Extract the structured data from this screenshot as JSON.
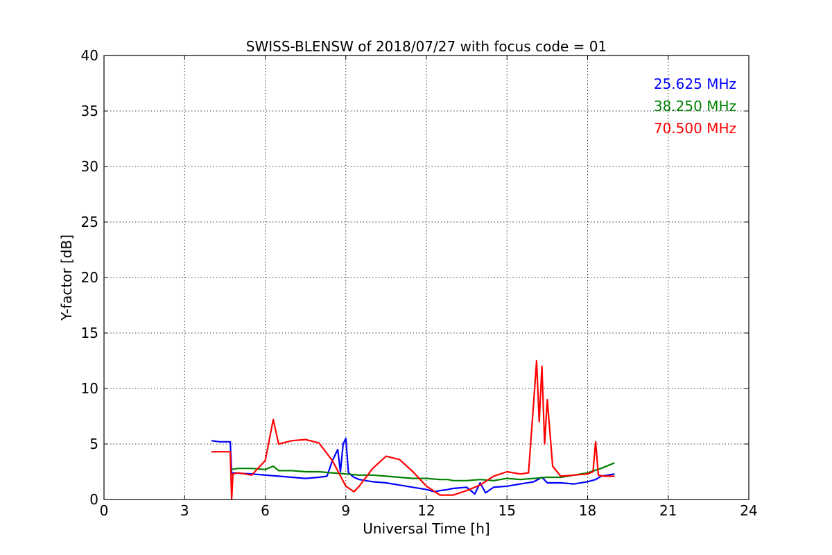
{
  "chart_data": {
    "type": "line",
    "title": "SWISS-BLENSW of 2018/07/27 with focus code = 01",
    "xlabel": "Universal Time [h]",
    "ylabel": "Y-factor [dB]",
    "xlim": [
      0,
      24
    ],
    "ylim": [
      0,
      40
    ],
    "xticks": [
      0,
      3,
      6,
      9,
      12,
      15,
      18,
      21,
      24
    ],
    "yticks": [
      0,
      5,
      10,
      15,
      20,
      25,
      30,
      35,
      40
    ],
    "xtick_labels": [
      "0",
      "3",
      "6",
      "9",
      "12",
      "15",
      "18",
      "21",
      "24"
    ],
    "ytick_labels": [
      "0",
      "5",
      "10",
      "15",
      "20",
      "25",
      "30",
      "35",
      "40"
    ],
    "grid": true,
    "legend_position": "top-right",
    "series": [
      {
        "name": "25.625 MHz",
        "color": "#0000ff",
        "x": [
          4.0,
          4.3,
          4.7,
          4.75,
          4.8,
          5.5,
          6.0,
          6.5,
          7.0,
          7.5,
          8.0,
          8.3,
          8.5,
          8.7,
          8.8,
          8.9,
          9.0,
          9.1,
          9.3,
          9.5,
          10.0,
          10.5,
          11.0,
          11.5,
          12.0,
          12.3,
          12.5,
          12.8,
          13.0,
          13.5,
          13.8,
          14.0,
          14.2,
          14.5,
          15.0,
          15.5,
          16.0,
          16.3,
          16.5,
          17.0,
          17.5,
          18.0,
          18.3,
          18.5,
          19.0
        ],
        "values": [
          5.3,
          5.2,
          5.2,
          2.3,
          2.4,
          2.3,
          2.2,
          2.1,
          2.0,
          1.9,
          2.0,
          2.1,
          3.5,
          4.5,
          2.5,
          5.0,
          5.5,
          2.4,
          2.0,
          1.8,
          1.6,
          1.5,
          1.3,
          1.1,
          0.9,
          0.7,
          0.8,
          0.9,
          1.0,
          1.1,
          0.5,
          1.5,
          0.6,
          1.1,
          1.2,
          1.4,
          1.6,
          2.0,
          1.5,
          1.5,
          1.4,
          1.6,
          1.8,
          2.1,
          2.3
        ]
      },
      {
        "name": "38.250 MHz",
        "color": "#008000",
        "x": [
          4.7,
          5.0,
          5.5,
          6.0,
          6.3,
          6.5,
          7.0,
          7.5,
          8.0,
          8.5,
          9.0,
          9.5,
          10.0,
          10.5,
          11.0,
          11.5,
          12.0,
          12.5,
          12.8,
          13.0,
          13.5,
          14.0,
          14.5,
          15.0,
          15.5,
          16.0,
          16.5,
          17.0,
          17.5,
          18.0,
          18.5,
          19.0
        ],
        "values": [
          2.7,
          2.8,
          2.8,
          2.7,
          3.0,
          2.6,
          2.6,
          2.5,
          2.5,
          2.4,
          2.3,
          2.2,
          2.2,
          2.1,
          2.0,
          1.9,
          1.9,
          1.8,
          1.8,
          1.7,
          1.7,
          1.8,
          1.7,
          1.9,
          1.8,
          1.9,
          2.0,
          2.0,
          2.2,
          2.4,
          2.8,
          3.3
        ]
      },
      {
        "name": "70.500 MHz",
        "color": "#ff0000",
        "x": [
          4.0,
          4.5,
          4.7,
          4.75,
          4.8,
          5.0,
          5.5,
          6.0,
          6.3,
          6.5,
          7.0,
          7.5,
          8.0,
          8.5,
          9.0,
          9.3,
          9.5,
          10.0,
          10.5,
          11.0,
          11.5,
          12.0,
          12.5,
          13.0,
          13.5,
          14.0,
          14.5,
          15.0,
          15.5,
          15.8,
          16.0,
          16.1,
          16.2,
          16.3,
          16.4,
          16.5,
          16.7,
          17.0,
          17.5,
          18.0,
          18.2,
          18.3,
          18.4,
          18.6,
          19.0
        ],
        "values": [
          4.3,
          4.3,
          4.3,
          0.0,
          2.3,
          2.4,
          2.2,
          3.5,
          7.2,
          5.0,
          5.3,
          5.4,
          5.1,
          3.5,
          1.2,
          0.7,
          1.2,
          2.8,
          3.9,
          3.6,
          2.5,
          1.2,
          0.4,
          0.4,
          0.8,
          1.3,
          2.1,
          2.5,
          2.3,
          2.4,
          9.0,
          12.5,
          7.0,
          12.0,
          5.0,
          9.0,
          3.0,
          2.1,
          2.2,
          2.3,
          2.5,
          5.2,
          2.2,
          2.1,
          2.1
        ]
      }
    ]
  }
}
